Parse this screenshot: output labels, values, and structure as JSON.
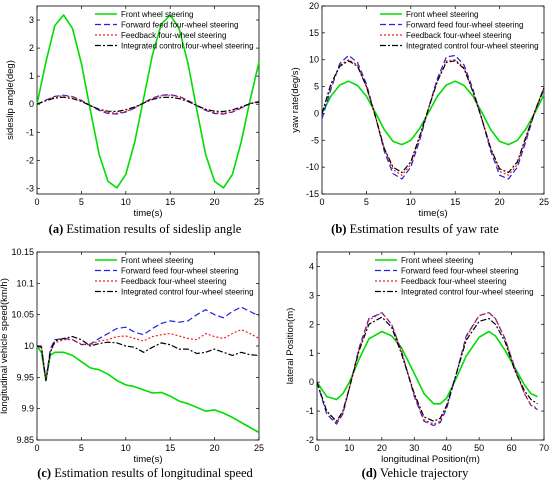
{
  "colors": {
    "front": "#00dd00",
    "forward": "#2222dd",
    "feedback": "#ee2020",
    "integrated": "#000000"
  },
  "legend_entries": [
    "Front wheel steering",
    "Forward feed four-wheel steering",
    "Feedback four-wheel steering",
    "Integrated control four-wheel steering"
  ],
  "captions": [
    {
      "letter": "(a)",
      "text": " Estimation results of sideslip angle"
    },
    {
      "letter": "(b)",
      "text": " Estimation results of yaw rate"
    },
    {
      "letter": "(c)",
      "text": " Estimation results of longitudinal speed"
    },
    {
      "letter": "(d)",
      "text": " Vehicle trajectory"
    }
  ],
  "chart_data": [
    {
      "id": "a",
      "type": "line",
      "xlabel": "time(s)",
      "ylabel": "sideslip angle(deg)",
      "xlim": [
        0,
        25
      ],
      "ylim": [
        -3.2,
        3.5
      ],
      "xticks": [
        0,
        5,
        10,
        15,
        20,
        25
      ],
      "yticks": [
        -3,
        -2,
        -1,
        0,
        1,
        2,
        3
      ],
      "legend": "top-right",
      "grid": false,
      "x": [
        0,
        1,
        2,
        3,
        4,
        5,
        6,
        7,
        8,
        9,
        10,
        11,
        12,
        13,
        14,
        15,
        16,
        17,
        18,
        19,
        20,
        21,
        22,
        23,
        24,
        25
      ],
      "series": [
        {
          "name": "Front wheel steering",
          "values": [
            0,
            1.5,
            2.8,
            3.18,
            2.7,
            1.45,
            -0.2,
            -1.8,
            -2.75,
            -2.98,
            -2.5,
            -1.35,
            0.2,
            1.75,
            2.85,
            3.18,
            2.7,
            1.45,
            -0.2,
            -1.8,
            -2.75,
            -2.98,
            -2.5,
            -1.35,
            0.15,
            1.5
          ]
        },
        {
          "name": "Forward feed four-wheel steering",
          "values": [
            0,
            0.15,
            0.28,
            0.32,
            0.27,
            0.14,
            -0.05,
            -0.22,
            -0.33,
            -0.35,
            -0.28,
            -0.14,
            0.05,
            0.22,
            0.32,
            0.34,
            0.28,
            0.14,
            -0.05,
            -0.22,
            -0.33,
            -0.35,
            -0.28,
            -0.14,
            0.02,
            0.1
          ]
        },
        {
          "name": "Feedback four-wheel steering",
          "values": [
            0,
            0.14,
            0.27,
            0.3,
            0.26,
            0.13,
            -0.04,
            -0.2,
            -0.3,
            -0.32,
            -0.26,
            -0.13,
            0.05,
            0.2,
            0.3,
            0.32,
            0.26,
            0.13,
            -0.04,
            -0.2,
            -0.3,
            -0.32,
            -0.26,
            -0.13,
            0.02,
            0.1
          ]
        },
        {
          "name": "Integrated control four-wheel steering",
          "values": [
            0,
            0.12,
            0.22,
            0.25,
            0.2,
            0.1,
            -0.05,
            -0.18,
            -0.25,
            -0.26,
            -0.2,
            -0.1,
            0.04,
            0.17,
            0.24,
            0.25,
            0.2,
            0.1,
            -0.05,
            -0.18,
            -0.25,
            -0.26,
            -0.2,
            -0.1,
            0.02,
            0.08
          ]
        }
      ]
    },
    {
      "id": "b",
      "type": "line",
      "xlabel": "time(s)",
      "ylabel": "yaw rate(deg/s)",
      "xlim": [
        0,
        25
      ],
      "ylim": [
        -15,
        20
      ],
      "xticks": [
        0,
        5,
        10,
        15,
        20,
        25
      ],
      "yticks": [
        -15,
        -10,
        -5,
        0,
        5,
        10,
        15,
        20
      ],
      "legend": "top-right",
      "grid": false,
      "x": [
        0,
        1,
        2,
        3,
        4,
        5,
        6,
        7,
        8,
        9,
        10,
        11,
        12,
        13,
        14,
        15,
        16,
        17,
        18,
        19,
        20,
        21,
        22,
        23,
        24,
        25
      ],
      "series": [
        {
          "name": "Front wheel steering",
          "values": [
            0,
            3.2,
            5.3,
            6,
            5.2,
            3.2,
            0.2,
            -3,
            -5.2,
            -5.8,
            -5,
            -2.8,
            0.2,
            3.2,
            5.3,
            6,
            5.2,
            3.2,
            0.2,
            -3,
            -5.2,
            -5.8,
            -5,
            -2.8,
            0.2,
            3.5
          ]
        },
        {
          "name": "Forward feed four-wheel steering",
          "values": [
            -1,
            4.5,
            9.3,
            10.8,
            9.5,
            5.5,
            -0.5,
            -7,
            -11.2,
            -12.2,
            -10,
            -5,
            1,
            6.5,
            10.5,
            10.8,
            9,
            4.5,
            -1,
            -7,
            -11.5,
            -12.2,
            -10,
            -5,
            0.5,
            4.5
          ]
        },
        {
          "name": "Feedback four-wheel steering",
          "values": [
            0,
            5,
            9,
            10,
            9,
            5,
            -0.5,
            -6.5,
            -10.5,
            -11.5,
            -9.5,
            -4.5,
            1,
            6,
            9.8,
            10,
            8.5,
            4,
            -1,
            -6.5,
            -10.8,
            -11.5,
            -9.5,
            -4.5,
            0.5,
            4.8
          ]
        },
        {
          "name": "Integrated control four-wheel steering",
          "values": [
            0,
            5.5,
            8.8,
            9.8,
            8.8,
            5,
            -0.5,
            -6.5,
            -10,
            -11,
            -9,
            -4.2,
            1,
            6,
            9.5,
            9.8,
            8.3,
            4,
            -1,
            -6.5,
            -10.3,
            -11,
            -9,
            -4.2,
            0.5,
            4.8
          ]
        }
      ]
    },
    {
      "id": "c",
      "type": "line",
      "xlabel": "time(s)",
      "ylabel": "longitudinal vehicle speed(km/h)",
      "xlim": [
        0,
        25
      ],
      "ylim": [
        9.85,
        10.15
      ],
      "xticks": [
        0,
        5,
        10,
        15,
        20,
        25
      ],
      "yticks": [
        9.85,
        9.9,
        9.95,
        10,
        10.05,
        10.1,
        10.15
      ],
      "legend": "top-right",
      "grid": false,
      "x": [
        0,
        0.5,
        1,
        1.5,
        2,
        3,
        4,
        5,
        6,
        7,
        8,
        9,
        10,
        11,
        12,
        13,
        14,
        15,
        16,
        17,
        18,
        19,
        20,
        21,
        22,
        23,
        24,
        25
      ],
      "series": [
        {
          "name": "Front wheel steering",
          "values": [
            10,
            9.99,
            9.945,
            9.985,
            9.99,
            9.99,
            9.985,
            9.975,
            9.965,
            9.962,
            9.955,
            9.945,
            9.938,
            9.935,
            9.93,
            9.925,
            9.926,
            9.92,
            9.912,
            9.908,
            9.902,
            9.896,
            9.898,
            9.893,
            9.886,
            9.878,
            9.87,
            9.862
          ]
        },
        {
          "name": "Forward feed four-wheel steering",
          "values": [
            10,
            10,
            9.945,
            9.995,
            10.01,
            10.012,
            10.01,
            10.002,
            10.003,
            10.012,
            10.02,
            10.028,
            10.03,
            10.022,
            10.018,
            10.028,
            10.036,
            10.04,
            10.038,
            10.04,
            10.05,
            10.058,
            10.05,
            10.045,
            10.055,
            10.062,
            10.055,
            10.048
          ]
        },
        {
          "name": "Feedback four-wheel steering",
          "values": [
            10,
            10,
            9.945,
            9.99,
            10.005,
            10.01,
            10.01,
            10.003,
            10.002,
            10.008,
            10.01,
            10.015,
            10.016,
            10.012,
            10.008,
            10.015,
            10.018,
            10.02,
            10.016,
            10.012,
            10.01,
            10.02,
            10.015,
            10.012,
            10.02,
            10.026,
            10.02,
            10.012
          ]
        },
        {
          "name": "Integrated control four-wheel steering",
          "values": [
            10,
            9.998,
            9.945,
            9.99,
            10.008,
            10.012,
            10.015,
            10.01,
            10.0,
            10.004,
            10.006,
            10.005,
            10.0,
            9.998,
            9.99,
            9.998,
            10.005,
            10.002,
            9.995,
            9.995,
            9.988,
            9.99,
            9.995,
            9.99,
            9.985,
            9.99,
            9.986,
            9.985
          ]
        }
      ]
    },
    {
      "id": "d",
      "type": "line",
      "xlabel": "longitudinal Position(m)",
      "ylabel": "lateral Position(m)",
      "xlim": [
        0,
        70
      ],
      "ylim": [
        -2,
        4.5
      ],
      "xticks": [
        0,
        10,
        20,
        30,
        40,
        50,
        60,
        70
      ],
      "yticks": [
        -2,
        -1,
        0,
        1,
        2,
        3,
        4
      ],
      "legend": "top-right",
      "grid": false,
      "x": [
        0,
        3,
        6,
        8,
        10,
        13,
        16,
        20,
        23,
        26,
        30,
        33,
        36,
        38,
        40,
        43,
        46,
        50,
        53,
        55,
        58,
        61,
        64,
        66,
        68
      ],
      "series": [
        {
          "name": "Front wheel steering",
          "values": [
            0,
            -0.5,
            -0.6,
            -0.4,
            0,
            0.8,
            1.5,
            1.75,
            1.6,
            1.2,
            0.3,
            -0.4,
            -0.75,
            -0.75,
            -0.55,
            0.15,
            0.9,
            1.55,
            1.75,
            1.6,
            1.1,
            0.5,
            -0.1,
            -0.4,
            -0.5
          ]
        },
        {
          "name": "Forward feed four-wheel steering",
          "values": [
            0,
            -1.1,
            -1.45,
            -1.1,
            -0.2,
            1.2,
            2.2,
            2.4,
            2,
            1.1,
            -0.5,
            -1.35,
            -1.5,
            -1.4,
            -0.9,
            0.3,
            1.6,
            2.3,
            2.4,
            2.2,
            1.5,
            0.5,
            -0.4,
            -0.8,
            -0.95
          ]
        },
        {
          "name": "Feedback four-wheel steering",
          "values": [
            0,
            -1,
            -1.4,
            -1.05,
            -0.2,
            1.15,
            2.15,
            2.4,
            2,
            1.1,
            -0.45,
            -1.3,
            -1.45,
            -1.35,
            -0.85,
            0.3,
            1.55,
            2.3,
            2.4,
            2.2,
            1.5,
            0.45,
            -0.4,
            -0.8,
            -0.9
          ]
        },
        {
          "name": "Integrated control four-wheel steering",
          "values": [
            0,
            -1,
            -1.35,
            -1,
            -0.2,
            1.1,
            2.0,
            2.25,
            1.9,
            1,
            -0.4,
            -1.2,
            -1.35,
            -1.25,
            -0.8,
            0.3,
            1.45,
            2.1,
            2.2,
            2,
            1.4,
            0.4,
            -0.3,
            -0.6,
            -0.75
          ]
        }
      ]
    }
  ]
}
